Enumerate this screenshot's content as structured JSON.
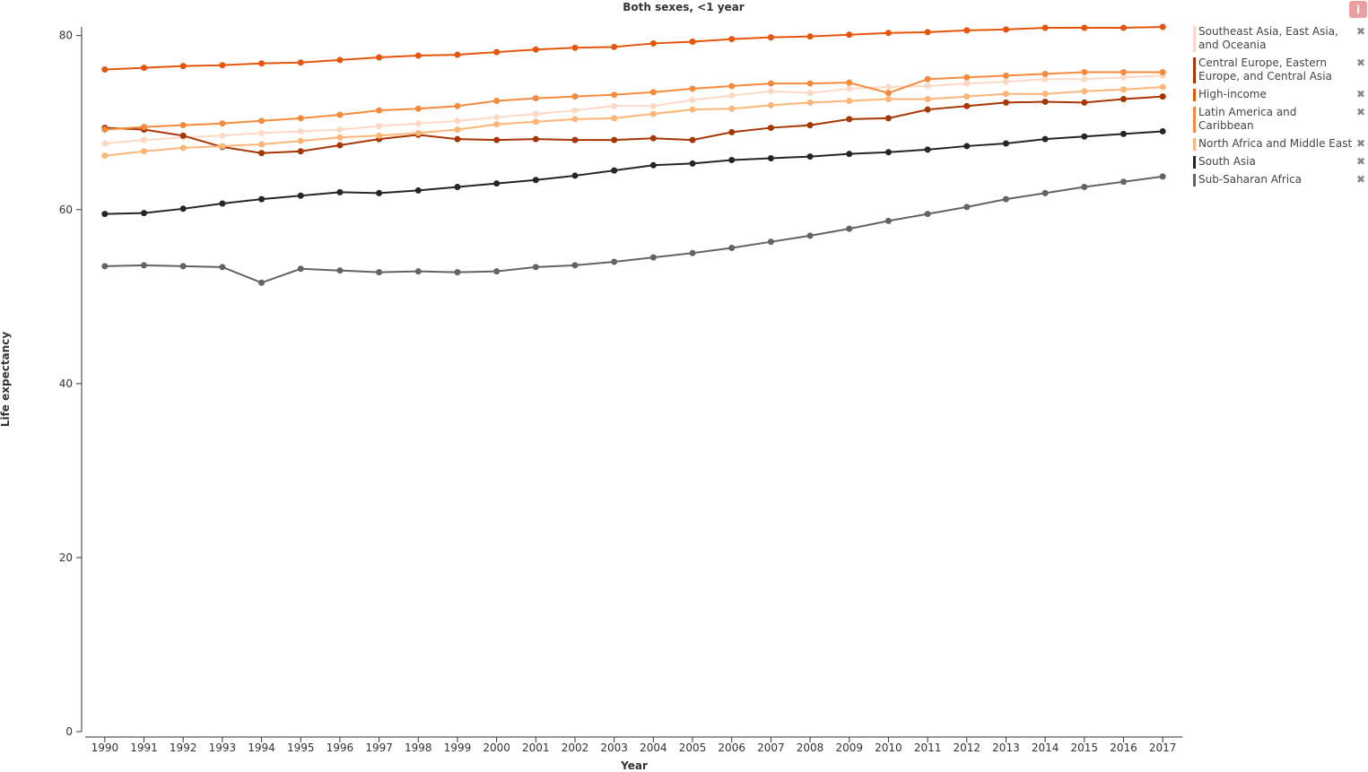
{
  "chart_data": {
    "type": "line",
    "title": "Both sexes, <1 year",
    "x_label": "Year",
    "y_label": "Life expectancy",
    "x": [
      1990,
      1991,
      1992,
      1993,
      1994,
      1995,
      1996,
      1997,
      1998,
      1999,
      2000,
      2001,
      2002,
      2003,
      2004,
      2005,
      2006,
      2007,
      2008,
      2009,
      2010,
      2011,
      2012,
      2013,
      2014,
      2015,
      2016,
      2017
    ],
    "xlim": [
      1989.5,
      2017.5
    ],
    "ylim": [
      0,
      81
    ],
    "yticks": [
      0,
      20,
      40,
      60,
      80
    ],
    "grid": false,
    "legend": "right",
    "series": [
      {
        "name": "Southeast Asia, East Asia, and Oceania",
        "color": "#fdd9c5",
        "values": [
          67.6,
          68.0,
          68.3,
          68.5,
          68.8,
          69.0,
          69.2,
          69.6,
          69.9,
          70.2,
          70.6,
          71.0,
          71.4,
          71.9,
          71.9,
          72.6,
          73.1,
          73.6,
          73.4,
          73.9,
          74.1,
          74.2,
          74.5,
          74.7,
          75.0,
          75.0,
          75.2,
          75.4
        ]
      },
      {
        "name": "Central Europe, Eastern Europe, and Central Asia",
        "color": "#a63603",
        "values": [
          69.4,
          69.2,
          68.5,
          67.2,
          66.5,
          66.7,
          67.4,
          68.1,
          68.6,
          68.1,
          68.0,
          68.1,
          68.0,
          68.0,
          68.2,
          68.0,
          68.9,
          69.4,
          69.7,
          70.4,
          70.5,
          71.5,
          71.9,
          72.3,
          72.4,
          72.3,
          72.7,
          73.0
        ]
      },
      {
        "name": "High-income",
        "color": "#e6550d",
        "values": [
          76.1,
          76.3,
          76.5,
          76.6,
          76.8,
          76.9,
          77.2,
          77.5,
          77.7,
          77.8,
          78.1,
          78.4,
          78.6,
          78.7,
          79.1,
          79.3,
          79.6,
          79.8,
          79.9,
          80.1,
          80.3,
          80.4,
          80.6,
          80.7,
          80.9,
          80.9,
          80.9,
          81.0
        ]
      },
      {
        "name": "Latin America and Caribbean",
        "color": "#f58a3d",
        "values": [
          69.2,
          69.5,
          69.7,
          69.9,
          70.2,
          70.5,
          70.9,
          71.4,
          71.6,
          71.9,
          72.5,
          72.8,
          73.0,
          73.2,
          73.5,
          73.9,
          74.2,
          74.5,
          74.5,
          74.6,
          73.4,
          75.0,
          75.2,
          75.4,
          75.6,
          75.8,
          75.8,
          75.8
        ]
      },
      {
        "name": "North Africa and Middle East",
        "color": "#fdb576",
        "values": [
          66.2,
          66.7,
          67.1,
          67.3,
          67.5,
          67.9,
          68.3,
          68.5,
          68.8,
          69.2,
          69.8,
          70.1,
          70.4,
          70.5,
          71.0,
          71.5,
          71.6,
          72.0,
          72.3,
          72.5,
          72.7,
          72.7,
          73.0,
          73.3,
          73.3,
          73.6,
          73.8,
          74.1
        ]
      },
      {
        "name": "South Asia",
        "color": "#252525",
        "values": [
          59.5,
          59.6,
          60.1,
          60.7,
          61.2,
          61.6,
          62.0,
          61.9,
          62.2,
          62.6,
          63.0,
          63.4,
          63.9,
          64.5,
          65.1,
          65.3,
          65.7,
          65.9,
          66.1,
          66.4,
          66.6,
          66.9,
          67.3,
          67.6,
          68.1,
          68.4,
          68.7,
          69.0
        ]
      },
      {
        "name": "Sub-Saharan Africa",
        "color": "#636363",
        "values": [
          53.5,
          53.6,
          53.5,
          53.4,
          51.6,
          53.2,
          53.0,
          52.8,
          52.9,
          52.8,
          52.9,
          53.4,
          53.6,
          54.0,
          54.5,
          55.0,
          55.6,
          56.3,
          57.0,
          57.8,
          58.7,
          59.5,
          60.3,
          61.2,
          61.9,
          62.6,
          63.2,
          63.8
        ]
      }
    ]
  }
}
